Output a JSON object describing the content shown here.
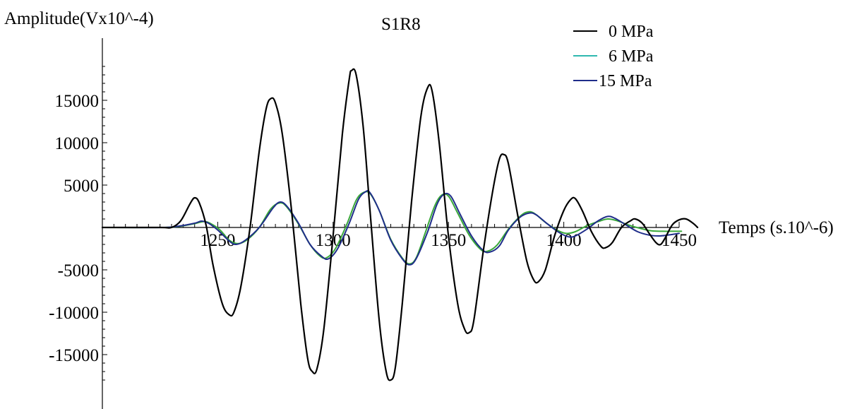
{
  "chart_data": {
    "type": "line",
    "title": "S1R8",
    "xlabel": "Temps (s.10^-6)",
    "ylabel": "Amplitude(Vx10^-4)",
    "xlim": [
      1200,
      1450
    ],
    "ylim": [
      -18500,
      19500
    ],
    "xticks": [
      1250,
      1300,
      1350,
      1400,
      1450
    ],
    "yticks": [
      15000,
      10000,
      5000,
      -5000,
      -10000,
      -15000
    ],
    "xtick_labels": [
      "1250",
      "1300",
      "1350",
      "1400",
      "1450"
    ],
    "ytick_labels": [
      "15000",
      "10000",
      "5000",
      "-5000",
      "-10000",
      "-15000"
    ],
    "legend_position": "top-right",
    "series": [
      {
        "name": "0 MPa",
        "color": "#000000",
        "points": [
          [
            1200,
            0
          ],
          [
            1225,
            0
          ],
          [
            1230,
            0
          ],
          [
            1234,
            800
          ],
          [
            1238,
            2800
          ],
          [
            1240,
            3500
          ],
          [
            1242,
            2900
          ],
          [
            1245,
            200
          ],
          [
            1248,
            -4500
          ],
          [
            1252,
            -9000
          ],
          [
            1255,
            -10300
          ],
          [
            1257,
            -10000
          ],
          [
            1260,
            -7000
          ],
          [
            1264,
            0
          ],
          [
            1268,
            9000
          ],
          [
            1271,
            14000
          ],
          [
            1273,
            15200
          ],
          [
            1275,
            14700
          ],
          [
            1278,
            11000
          ],
          [
            1282,
            2000
          ],
          [
            1286,
            -9000
          ],
          [
            1289,
            -15500
          ],
          [
            1291,
            -17000
          ],
          [
            1293,
            -16700
          ],
          [
            1296,
            -12000
          ],
          [
            1300,
            -1000
          ],
          [
            1304,
            11000
          ],
          [
            1307,
            17500
          ],
          [
            1308,
            18500
          ],
          [
            1310,
            18000
          ],
          [
            1313,
            12000
          ],
          [
            1316,
            2000
          ],
          [
            1320,
            -11000
          ],
          [
            1323,
            -17000
          ],
          [
            1325,
            -18000
          ],
          [
            1327,
            -16500
          ],
          [
            1330,
            -9000
          ],
          [
            1334,
            3000
          ],
          [
            1338,
            13000
          ],
          [
            1341,
            16500
          ],
          [
            1343,
            16000
          ],
          [
            1346,
            10000
          ],
          [
            1350,
            -1000
          ],
          [
            1354,
            -9000
          ],
          [
            1357,
            -12000
          ],
          [
            1359,
            -12400
          ],
          [
            1361,
            -11000
          ],
          [
            1365,
            -3000
          ],
          [
            1369,
            4000
          ],
          [
            1372,
            8000
          ],
          [
            1374,
            8600
          ],
          [
            1376,
            7500
          ],
          [
            1380,
            1500
          ],
          [
            1384,
            -4000
          ],
          [
            1387,
            -6200
          ],
          [
            1389,
            -6400
          ],
          [
            1392,
            -5000
          ],
          [
            1396,
            -1000
          ],
          [
            1400,
            2000
          ],
          [
            1403,
            3300
          ],
          [
            1405,
            3400
          ],
          [
            1408,
            2000
          ],
          [
            1412,
            -500
          ],
          [
            1416,
            -2200
          ],
          [
            1418,
            -2400
          ],
          [
            1421,
            -1800
          ],
          [
            1425,
            0
          ],
          [
            1429,
            800
          ],
          [
            1431,
            1000
          ],
          [
            1434,
            500
          ],
          [
            1437,
            -700
          ],
          [
            1440,
            -1800
          ],
          [
            1442,
            -2000
          ],
          [
            1444,
            -1200
          ],
          [
            1447,
            300
          ],
          [
            1450,
            900
          ],
          [
            1453,
            1000
          ],
          [
            1456,
            500
          ],
          [
            1458,
            0
          ]
        ]
      },
      {
        "name": "6 MPa",
        "color": "#2fb8b0",
        "points": []
      },
      {
        "name": "15 MPa",
        "color": "#1f2d8a",
        "points": [
          [
            1200,
            0
          ],
          [
            1226,
            0
          ],
          [
            1233,
            150
          ],
          [
            1240,
            500
          ],
          [
            1243,
            750
          ],
          [
            1246,
            500
          ],
          [
            1250,
            -300
          ],
          [
            1255,
            -1600
          ],
          [
            1258,
            -2000
          ],
          [
            1262,
            -1500
          ],
          [
            1268,
            0
          ],
          [
            1274,
            2300
          ],
          [
            1277,
            3000
          ],
          [
            1280,
            2500
          ],
          [
            1285,
            500
          ],
          [
            1290,
            -2000
          ],
          [
            1295,
            -3400
          ],
          [
            1298,
            -3700
          ],
          [
            1302,
            -2500
          ],
          [
            1307,
            500
          ],
          [
            1311,
            3300
          ],
          [
            1314,
            4200
          ],
          [
            1316,
            4100
          ],
          [
            1320,
            2000
          ],
          [
            1325,
            -1500
          ],
          [
            1330,
            -3700
          ],
          [
            1333,
            -4400
          ],
          [
            1336,
            -3700
          ],
          [
            1341,
            -500
          ],
          [
            1345,
            2700
          ],
          [
            1348,
            3900
          ],
          [
            1351,
            3700
          ],
          [
            1355,
            1600
          ],
          [
            1360,
            -1000
          ],
          [
            1365,
            -2700
          ],
          [
            1368,
            -2900
          ],
          [
            1372,
            -2200
          ],
          [
            1376,
            -300
          ],
          [
            1381,
            1200
          ],
          [
            1385,
            1700
          ],
          [
            1388,
            1500
          ],
          [
            1393,
            400
          ],
          [
            1398,
            -600
          ],
          [
            1402,
            -1100
          ],
          [
            1405,
            -1000
          ],
          [
            1410,
            -200
          ],
          [
            1415,
            800
          ],
          [
            1419,
            1300
          ],
          [
            1422,
            1100
          ],
          [
            1427,
            300
          ],
          [
            1432,
            -500
          ],
          [
            1437,
            -900
          ],
          [
            1441,
            -1000
          ],
          [
            1445,
            -900
          ],
          [
            1450,
            -700
          ]
        ]
      },
      {
        "name": "",
        "color": "#3aa83a",
        "points": [
          [
            1200,
            0
          ],
          [
            1226,
            0
          ],
          [
            1233,
            120
          ],
          [
            1240,
            450
          ],
          [
            1244,
            700
          ],
          [
            1247,
            450
          ],
          [
            1251,
            -300
          ],
          [
            1255,
            -1500
          ],
          [
            1259,
            -1900
          ],
          [
            1263,
            -1400
          ],
          [
            1268,
            0
          ],
          [
            1273,
            2200
          ],
          [
            1277,
            2900
          ],
          [
            1280,
            2400
          ],
          [
            1285,
            400
          ],
          [
            1290,
            -2000
          ],
          [
            1294,
            -3300
          ],
          [
            1297,
            -3600
          ],
          [
            1301,
            -2500
          ],
          [
            1306,
            400
          ],
          [
            1310,
            3200
          ],
          [
            1313,
            4100
          ],
          [
            1316,
            4000
          ],
          [
            1320,
            2000
          ],
          [
            1325,
            -1400
          ],
          [
            1330,
            -3600
          ],
          [
            1333,
            -4300
          ],
          [
            1336,
            -3600
          ],
          [
            1340,
            -600
          ],
          [
            1344,
            2500
          ],
          [
            1347,
            3800
          ],
          [
            1350,
            3700
          ],
          [
            1354,
            1700
          ],
          [
            1359,
            -900
          ],
          [
            1364,
            -2600
          ],
          [
            1367,
            -2800
          ],
          [
            1371,
            -2100
          ],
          [
            1376,
            -200
          ],
          [
            1381,
            1300
          ],
          [
            1384,
            1800
          ],
          [
            1387,
            1700
          ],
          [
            1392,
            600
          ],
          [
            1397,
            -300
          ],
          [
            1401,
            -700
          ],
          [
            1405,
            -500
          ],
          [
            1410,
            200
          ],
          [
            1415,
            700
          ],
          [
            1419,
            1000
          ],
          [
            1423,
            800
          ],
          [
            1428,
            300
          ],
          [
            1433,
            -100
          ],
          [
            1438,
            -400
          ],
          [
            1443,
            -450
          ],
          [
            1448,
            -450
          ],
          [
            1451,
            -450
          ]
        ]
      }
    ]
  }
}
